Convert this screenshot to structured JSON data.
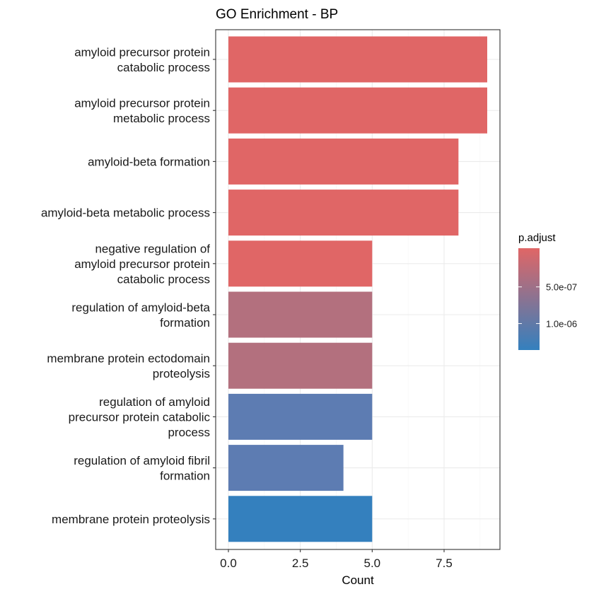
{
  "chart_data": {
    "type": "bar",
    "orientation": "horizontal",
    "title": "GO Enrichment - BP",
    "xlabel": "Count",
    "ylabel": "",
    "xlim": [
      0,
      9.45
    ],
    "x_ticks": [
      0,
      2.5,
      5,
      7.5
    ],
    "x_tick_labels": [
      "0.0",
      "2.5",
      "5.0",
      "7.5"
    ],
    "grid": true,
    "categories": [
      [
        "amyloid precursor protein",
        "catabolic process"
      ],
      [
        "amyloid precursor protein",
        "metabolic process"
      ],
      [
        "amyloid-beta formation"
      ],
      [
        "amyloid-beta metabolic process"
      ],
      [
        "negative regulation of",
        "amyloid precursor protein",
        "catabolic process"
      ],
      [
        "regulation of amyloid-beta",
        "formation"
      ],
      [
        "membrane protein ectodomain",
        "proteolysis"
      ],
      [
        "regulation of amyloid",
        "precursor protein catabolic",
        "process"
      ],
      [
        "regulation of amyloid fibril",
        "formation"
      ],
      [
        "membrane protein proteolysis"
      ]
    ],
    "values": [
      9,
      9,
      8,
      8,
      5,
      5,
      5,
      5,
      4,
      5
    ],
    "bar_colors": [
      "#E06666",
      "#E06666",
      "#E06666",
      "#E06666",
      "#E06666",
      "#B3707E",
      "#B3707E",
      "#5D7CB2",
      "#5D7CB2",
      "#3480BE"
    ],
    "legend": {
      "title": "p.adjust",
      "placement": "right",
      "gradient_top": "#E06666",
      "gradient_bottom": "#3480BE",
      "ticks": [
        {
          "label": "5.0e-07",
          "fraction_from_top": 0.38
        },
        {
          "label": "1.0e-06",
          "fraction_from_top": 0.74
        }
      ]
    }
  }
}
